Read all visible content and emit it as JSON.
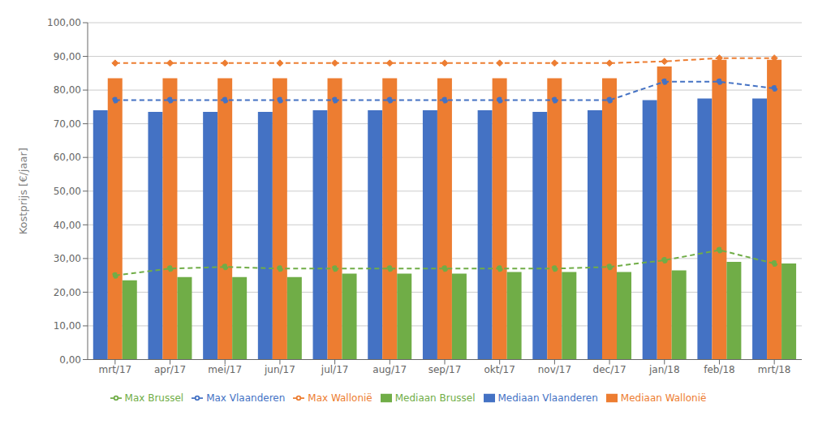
{
  "chart_data": {
    "type": "bar",
    "ylabel": "Kostprijs [€/jaar]",
    "categories": [
      "mrt/17",
      "apr/17",
      "mei/17",
      "jun/17",
      "jul/17",
      "aug/17",
      "sep/17",
      "okt/17",
      "nov/17",
      "dec/17",
      "jan/18",
      "feb/18",
      "mrt/18"
    ],
    "series": [
      {
        "name": "Mediaan Vlaanderen",
        "type": "bar",
        "color": "#4472C4",
        "values": [
          74.0,
          73.5,
          73.5,
          73.5,
          74.0,
          74.0,
          74.0,
          74.0,
          73.5,
          74.0,
          77.0,
          77.5,
          77.5
        ]
      },
      {
        "name": "Mediaan Wallonië",
        "type": "bar",
        "color": "#ED7D31",
        "values": [
          83.5,
          83.5,
          83.5,
          83.5,
          83.5,
          83.5,
          83.5,
          83.5,
          83.5,
          83.5,
          87.0,
          89.0,
          89.0
        ]
      },
      {
        "name": "Mediaan Brussel",
        "type": "bar",
        "color": "#70AD47",
        "values": [
          23.5,
          24.5,
          24.5,
          24.5,
          25.5,
          25.5,
          25.5,
          26.0,
          26.0,
          26.0,
          26.5,
          29.0,
          28.5
        ]
      },
      {
        "name": "Max Vlaanderen",
        "type": "line",
        "color": "#4472C4",
        "line_style": "dashed",
        "marker": "circle",
        "values": [
          77.0,
          77.0,
          77.0,
          77.0,
          77.0,
          77.0,
          77.0,
          77.0,
          77.0,
          77.0,
          82.5,
          82.5,
          80.5
        ]
      },
      {
        "name": "Max Wallonië",
        "type": "line",
        "color": "#ED7D31",
        "line_style": "dashed",
        "marker": "diamond",
        "values": [
          88.0,
          88.0,
          88.0,
          88.0,
          88.0,
          88.0,
          88.0,
          88.0,
          88.0,
          88.0,
          88.5,
          89.5,
          89.5
        ]
      },
      {
        "name": "Max Brussel",
        "type": "line",
        "color": "#70AD47",
        "line_style": "dashed",
        "marker": "circle",
        "values": [
          25.0,
          27.0,
          27.5,
          27.0,
          27.0,
          27.0,
          27.0,
          27.0,
          27.0,
          27.5,
          29.5,
          32.5,
          28.5
        ]
      }
    ],
    "ylim": [
      0,
      100
    ],
    "yticks": [
      {
        "value": 0,
        "label": "0,00"
      },
      {
        "value": 10,
        "label": "10,00"
      },
      {
        "value": 20,
        "label": "20,00"
      },
      {
        "value": 30,
        "label": "30,00"
      },
      {
        "value": 40,
        "label": "40,00"
      },
      {
        "value": 50,
        "label": "50,00"
      },
      {
        "value": 60,
        "label": "60,00"
      },
      {
        "value": 70,
        "label": "70,00"
      },
      {
        "value": 80,
        "label": "80,00"
      },
      {
        "value": 90,
        "label": "90,00"
      },
      {
        "value": 100,
        "label": "100,00"
      }
    ],
    "grid": "y",
    "legend": "bottom"
  }
}
